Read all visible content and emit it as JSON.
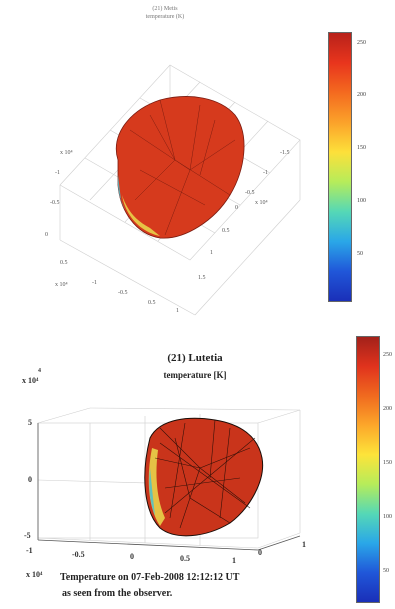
{
  "top_figure": {
    "title_line1": "(21) Metis",
    "title_line2": "temperature (K)",
    "colorbar": {
      "ticks": [
        "250",
        "200",
        "150",
        "100",
        "50"
      ],
      "colors": [
        "#b8211a",
        "#e8351d",
        "#f46a1f",
        "#fba22a",
        "#fde03a",
        "#b6ec5a",
        "#55d8b6",
        "#2aa7e8",
        "#2057d9",
        "#1a2fb8"
      ]
    },
    "x_ticks": [
      "-1.5",
      "-1",
      "-0.5",
      "0",
      "0.5",
      "1",
      "1.5"
    ],
    "y_ticks": [
      "-1.5",
      "-1",
      "-0.5",
      "0",
      "0.5",
      "1",
      "1.5"
    ],
    "exp_labels": [
      "x 10⁴",
      "x 10⁴",
      "x 10⁴"
    ],
    "body_color": "#d63a1d"
  },
  "bottom_figure": {
    "title_line1": "(21) Lutetia",
    "title_line2": "temperature [K]",
    "colorbar": {
      "ticks": [
        "250",
        "200",
        "150",
        "100",
        "50"
      ],
      "colors": [
        "#a3211a",
        "#e0331d",
        "#f06a1f",
        "#fca72a",
        "#fde43a",
        "#b6ec5a",
        "#55d8b6",
        "#2aa7e8",
        "#2057d9",
        "#1a2fb8"
      ]
    },
    "z_exp": "x 10⁴",
    "z_ticks": [
      "5",
      "0",
      "-5"
    ],
    "x_ticks": [
      "-1",
      "-0.5",
      "0",
      "0.5",
      "1"
    ],
    "x_exp": "x 10⁴",
    "y_ticks": [
      "0",
      "1"
    ],
    "caption_line1": "Temperature on 07-Feb-2008 12:12:12 UT",
    "caption_line2": "as seen from the observer.",
    "body_color": "#c9341b"
  }
}
